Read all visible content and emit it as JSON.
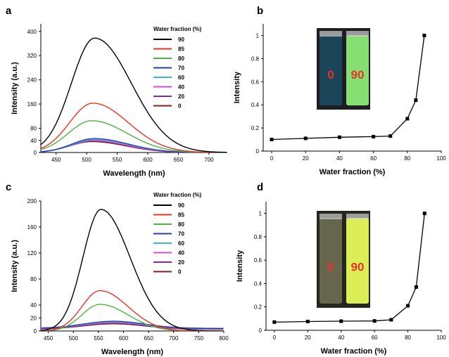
{
  "chart_data": [
    {
      "panel": "a",
      "type": "line",
      "xlabel": "Wavelength (nm)",
      "ylabel": "Intensity (a.u.)",
      "xlim": [
        425,
        730
      ],
      "ylim": [
        0,
        425
      ],
      "xticks": [
        450,
        500,
        550,
        600,
        650,
        700
      ],
      "yticks": [
        0,
        40,
        80,
        160,
        240,
        320,
        400
      ],
      "legend_title": "Water fraction (%)",
      "legend_position": "top-right",
      "series": [
        {
          "name": "90",
          "color": "#000000",
          "peak_x": 513,
          "peak_y": 378,
          "sigma_left": 38,
          "sigma_right": 60,
          "base_y": 0
        },
        {
          "name": "85",
          "color": "#e8332a",
          "peak_x": 510,
          "peak_y": 163,
          "sigma_left": 38,
          "sigma_right": 58,
          "base_y": 0
        },
        {
          "name": "80",
          "color": "#4db345",
          "peak_x": 508,
          "peak_y": 105,
          "sigma_left": 38,
          "sigma_right": 58,
          "base_y": 0
        },
        {
          "name": "70",
          "color": "#2b3bb0",
          "peak_x": 512,
          "peak_y": 46,
          "sigma_left": 36,
          "sigma_right": 56,
          "base_y": 0
        },
        {
          "name": "60",
          "color": "#39b7c9",
          "peak_x": 512,
          "peak_y": 43,
          "sigma_left": 36,
          "sigma_right": 56,
          "base_y": 0
        },
        {
          "name": "40",
          "color": "#d04fd6",
          "peak_x": 510,
          "peak_y": 40,
          "sigma_left": 36,
          "sigma_right": 56,
          "base_y": 0
        },
        {
          "name": "20",
          "color": "#7b2d91",
          "peak_x": 510,
          "peak_y": 38,
          "sigma_left": 36,
          "sigma_right": 56,
          "base_y": 0
        },
        {
          "name": "0",
          "color": "#8b1a1a",
          "peak_x": 508,
          "peak_y": 36,
          "sigma_left": 36,
          "sigma_right": 56,
          "base_y": 0
        }
      ]
    },
    {
      "panel": "b",
      "type": "line",
      "markers": true,
      "xlabel": "Water fraction (%)",
      "ylabel": "Intensity",
      "xlim": [
        -5,
        100
      ],
      "ylim": [
        0,
        1.1
      ],
      "xticks": [
        0,
        20,
        40,
        60,
        80,
        100
      ],
      "yticks": [
        0.0,
        0.2,
        0.4,
        0.6,
        0.8,
        1.0
      ],
      "x": [
        0,
        20,
        40,
        60,
        70,
        80,
        85,
        90
      ],
      "y": [
        0.1,
        0.11,
        0.12,
        0.125,
        0.13,
        0.28,
        0.44,
        1.0
      ],
      "inset": {
        "labels": [
          "0",
          "90"
        ],
        "vial_colors": [
          "#1b4a5e",
          "#8ff07a"
        ],
        "background": "#1e1e22",
        "label_color": "#e8332a"
      }
    },
    {
      "panel": "c",
      "type": "line",
      "xlabel": "Wavelength (nm)",
      "ylabel": "Intensity (a.u.)",
      "xlim": [
        435,
        800
      ],
      "ylim": [
        0,
        200
      ],
      "xticks": [
        450,
        500,
        550,
        600,
        650,
        700,
        750,
        800
      ],
      "yticks": [
        0,
        20,
        40,
        80,
        120,
        160,
        200
      ],
      "legend_title": "Water fraction (%)",
      "legend_position": "top-right",
      "series": [
        {
          "name": "90",
          "color": "#000000",
          "peak_x": 555,
          "peak_y": 187,
          "sigma_left": 36,
          "sigma_right": 58,
          "base_y": 0
        },
        {
          "name": "85",
          "color": "#e8332a",
          "peak_x": 553,
          "peak_y": 62,
          "sigma_left": 36,
          "sigma_right": 56,
          "base_y": 0
        },
        {
          "name": "80",
          "color": "#4db345",
          "peak_x": 553,
          "peak_y": 41,
          "sigma_left": 36,
          "sigma_right": 56,
          "base_y": 0
        },
        {
          "name": "70",
          "color": "#2b3bb0",
          "peak_x": 580,
          "peak_y": 15,
          "sigma_left": 60,
          "sigma_right": 62,
          "base_y": 4
        },
        {
          "name": "60",
          "color": "#39b7c9",
          "peak_x": 580,
          "peak_y": 14,
          "sigma_left": 60,
          "sigma_right": 62,
          "base_y": 4
        },
        {
          "name": "40",
          "color": "#d04fd6",
          "peak_x": 580,
          "peak_y": 13,
          "sigma_left": 60,
          "sigma_right": 62,
          "base_y": 4
        },
        {
          "name": "20",
          "color": "#7b2d91",
          "peak_x": 580,
          "peak_y": 12,
          "sigma_left": 60,
          "sigma_right": 62,
          "base_y": 3
        },
        {
          "name": "0",
          "color": "#8b1a1a",
          "peak_x": 580,
          "peak_y": 11,
          "sigma_left": 60,
          "sigma_right": 62,
          "base_y": 3
        }
      ]
    },
    {
      "panel": "d",
      "type": "line",
      "markers": true,
      "xlabel": "Water fraction (%)",
      "ylabel": "Intensity",
      "xlim": [
        -5,
        100
      ],
      "ylim": [
        0,
        1.1
      ],
      "xticks": [
        0,
        20,
        40,
        60,
        80,
        100
      ],
      "yticks": [
        0.0,
        0.2,
        0.4,
        0.6,
        0.8,
        1.0
      ],
      "x": [
        0,
        20,
        40,
        60,
        70,
        80,
        85,
        90
      ],
      "y": [
        0.07,
        0.075,
        0.078,
        0.08,
        0.09,
        0.21,
        0.37,
        1.0
      ],
      "inset": {
        "labels": [
          "0",
          "90"
        ],
        "vial_colors": [
          "#6b6b52",
          "#eaff5a"
        ],
        "background": "#26261e",
        "label_color": "#e8332a"
      }
    }
  ]
}
